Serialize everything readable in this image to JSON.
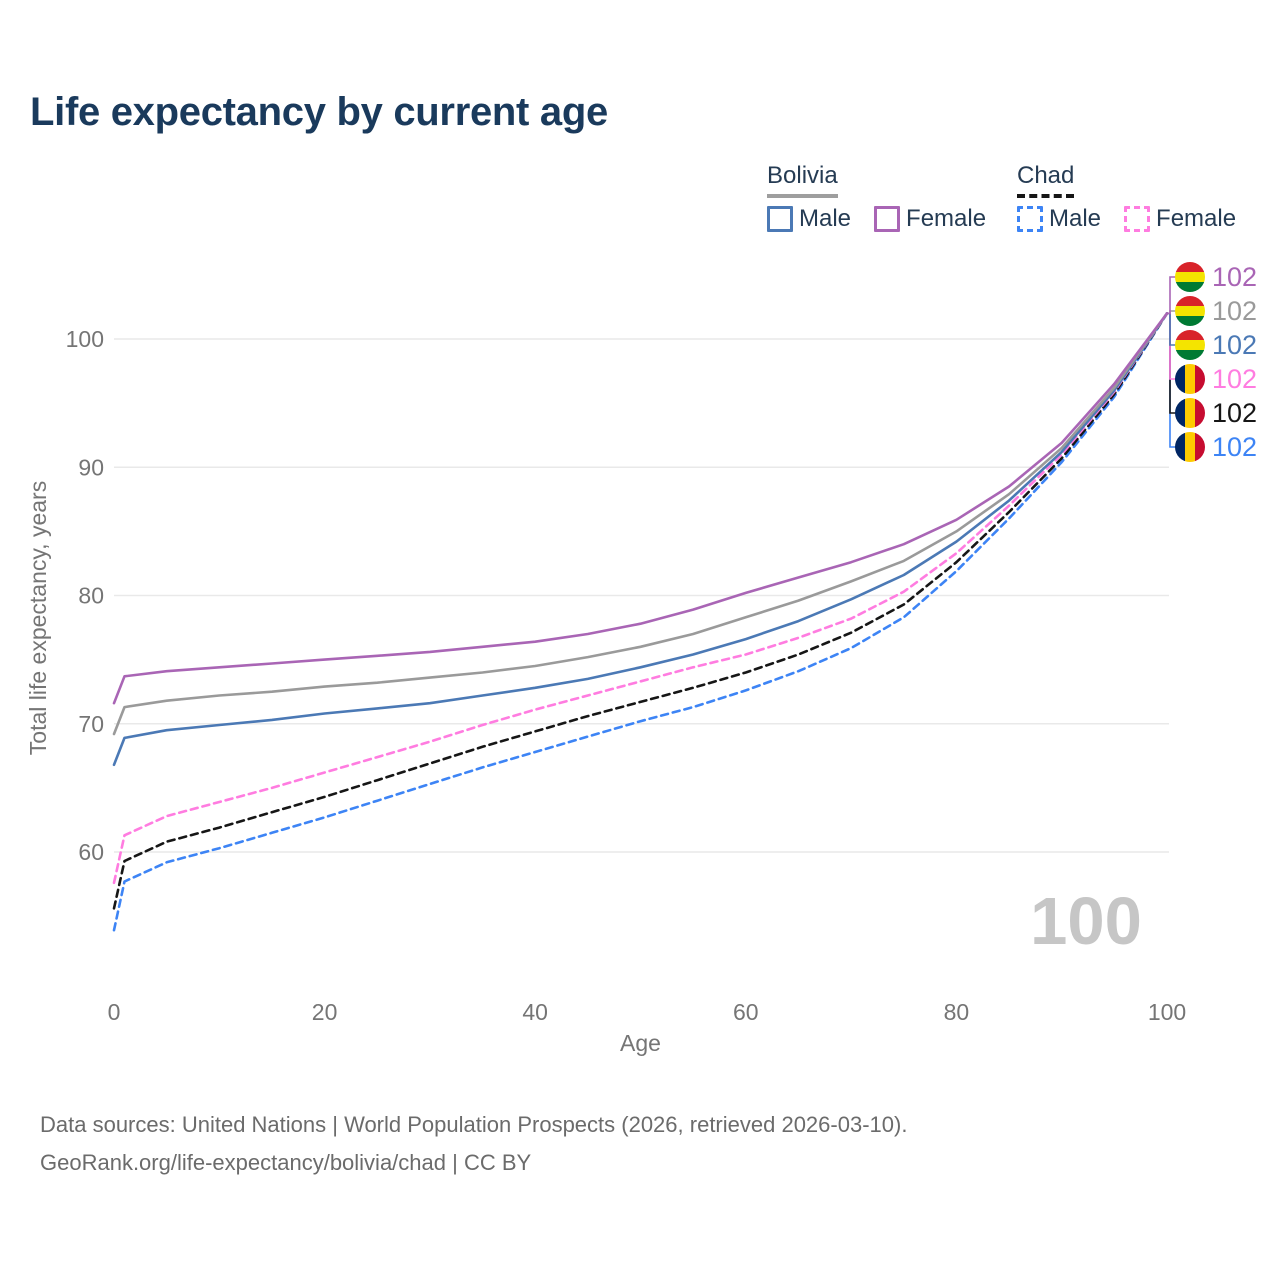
{
  "title": "Life expectancy by current age",
  "legend": {
    "groups": [
      {
        "country": "Bolivia",
        "line": "solid",
        "line_color": "#9e9e9e",
        "items": [
          {
            "label": "Male",
            "color": "#4b79b5",
            "dashed": false
          },
          {
            "label": "Female",
            "color": "#a965b5",
            "dashed": false
          }
        ]
      },
      {
        "country": "Chad",
        "line": "dashed",
        "line_color": "#161616",
        "items": [
          {
            "label": "Male",
            "color": "#3d84f5",
            "dashed": true
          },
          {
            "label": "Female",
            "color": "#ff7ce0",
            "dashed": true
          }
        ]
      }
    ]
  },
  "chart_data": {
    "type": "line",
    "title": "Life expectancy by current age",
    "xlabel": "Age",
    "ylabel": "Total life expectancy, years",
    "x_ticks": [
      0,
      20,
      40,
      60,
      80,
      100
    ],
    "y_ticks": [
      60,
      70,
      80,
      90,
      100
    ],
    "xlim": [
      0,
      100
    ],
    "ylim": [
      52,
      104
    ],
    "grid": "horizontal",
    "legend_position": "top-right",
    "age_watermark": "100",
    "axis_color": "#757575",
    "grid_color": "#e9e9e9",
    "watermark_color": "#c6c6c6",
    "ages": [
      0,
      1,
      5,
      10,
      15,
      20,
      25,
      30,
      35,
      40,
      45,
      50,
      55,
      60,
      65,
      70,
      75,
      80,
      85,
      90,
      95,
      100
    ],
    "series": [
      {
        "name": "Bolivia Female",
        "country": "Bolivia",
        "sex": "Female",
        "line": "solid",
        "color": "#a965b5",
        "flag": "bolivia",
        "end_label": "102",
        "values": [
          71.6,
          73.7,
          74.1,
          74.4,
          74.7,
          75.0,
          75.3,
          75.6,
          76.0,
          76.4,
          77.0,
          77.8,
          78.9,
          80.2,
          81.4,
          82.6,
          84.0,
          85.9,
          88.5,
          91.9,
          96.5,
          102
        ]
      },
      {
        "name": "Bolivia Both sexes",
        "country": "Bolivia",
        "sex": "Both sexes",
        "line": "solid",
        "color": "#9a9a9a",
        "flag": "bolivia",
        "end_label": "102",
        "values": [
          69.2,
          71.3,
          71.8,
          72.2,
          72.5,
          72.9,
          73.2,
          73.6,
          74.0,
          74.5,
          75.2,
          76.0,
          77.0,
          78.3,
          79.6,
          81.1,
          82.7,
          85.0,
          87.9,
          91.5,
          96.2,
          102
        ]
      },
      {
        "name": "Bolivia Male",
        "country": "Bolivia",
        "sex": "Male",
        "line": "solid",
        "color": "#4b79b5",
        "flag": "bolivia",
        "end_label": "102",
        "values": [
          66.8,
          68.9,
          69.5,
          69.9,
          70.3,
          70.8,
          71.2,
          71.6,
          72.2,
          72.8,
          73.5,
          74.4,
          75.4,
          76.6,
          78.0,
          79.7,
          81.6,
          84.2,
          87.4,
          91.2,
          96.0,
          102
        ]
      },
      {
        "name": "Chad Female",
        "country": "Chad",
        "sex": "Female",
        "line": "dashed",
        "color": "#ff7ce0",
        "flag": "chad",
        "end_label": "102",
        "values": [
          57.6,
          61.3,
          62.8,
          63.9,
          65.0,
          66.2,
          67.4,
          68.6,
          69.9,
          71.1,
          72.2,
          73.3,
          74.4,
          75.4,
          76.7,
          78.2,
          80.3,
          83.3,
          87.0,
          91.0,
          95.9,
          102
        ]
      },
      {
        "name": "Chad Both sexes",
        "country": "Chad",
        "sex": "Both sexes",
        "line": "dashed",
        "color": "#161616",
        "flag": "chad",
        "end_label": "102",
        "values": [
          55.6,
          59.3,
          60.8,
          61.9,
          63.1,
          64.3,
          65.6,
          66.9,
          68.2,
          69.4,
          70.6,
          71.7,
          72.8,
          74.0,
          75.4,
          77.1,
          79.3,
          82.6,
          86.5,
          90.7,
          95.7,
          102
        ]
      },
      {
        "name": "Chad Male",
        "country": "Chad",
        "sex": "Male",
        "line": "dashed",
        "color": "#3d84f5",
        "flag": "chad",
        "end_label": "102",
        "values": [
          53.9,
          57.7,
          59.2,
          60.3,
          61.5,
          62.7,
          64.0,
          65.3,
          66.6,
          67.8,
          69.0,
          70.2,
          71.3,
          72.6,
          74.1,
          75.9,
          78.3,
          81.9,
          86.0,
          90.4,
          95.5,
          102
        ]
      }
    ],
    "flags": {
      "bolivia": {
        "orientation": "horizontal",
        "colors": [
          "#d8232a",
          "#f4e400",
          "#007a33"
        ]
      },
      "chad": {
        "orientation": "vertical",
        "colors": [
          "#002664",
          "#fecb00",
          "#c60c30"
        ]
      }
    }
  },
  "footer": {
    "line1": "Data sources: United Nations | World Population Prospects (2026, retrieved 2026-03-10).",
    "line2": "GeoRank.org/life-expectancy/bolivia/chad | CC BY"
  }
}
